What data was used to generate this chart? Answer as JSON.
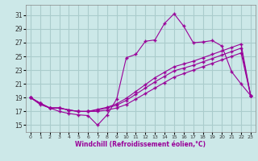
{
  "background_color": "#cce8e8",
  "grid_color": "#aacccc",
  "line_color": "#990099",
  "marker": "+",
  "xlabel": "Windchill (Refroidissement éolien,°C)",
  "ylabel_ticks": [
    15,
    17,
    19,
    21,
    23,
    25,
    27,
    29,
    31
  ],
  "xlabel_ticks": [
    0,
    1,
    2,
    3,
    4,
    5,
    6,
    7,
    8,
    9,
    10,
    11,
    12,
    13,
    14,
    15,
    16,
    17,
    18,
    19,
    20,
    21,
    22,
    23
  ],
  "xlim": [
    -0.5,
    23.5
  ],
  "ylim": [
    14.0,
    32.5
  ],
  "series": [
    [
      19.0,
      18.0,
      17.5,
      17.0,
      16.7,
      16.5,
      16.4,
      15.0,
      16.5,
      18.8,
      24.8,
      25.3,
      27.2,
      27.4,
      29.8,
      31.2,
      29.4,
      27.0,
      27.1,
      27.3,
      26.5,
      22.8,
      21.0,
      19.3
    ],
    [
      19.0,
      18.2,
      17.5,
      17.5,
      17.2,
      17.0,
      17.0,
      17.0,
      17.2,
      17.5,
      18.0,
      18.8,
      19.6,
      20.4,
      21.2,
      22.0,
      22.5,
      23.0,
      23.5,
      24.0,
      24.5,
      25.0,
      25.5,
      19.3
    ],
    [
      19.0,
      18.2,
      17.5,
      17.5,
      17.2,
      17.0,
      17.0,
      17.2,
      17.5,
      17.9,
      18.6,
      19.5,
      20.4,
      21.3,
      22.1,
      22.9,
      23.3,
      23.7,
      24.2,
      24.7,
      25.2,
      25.7,
      26.2,
      19.3
    ],
    [
      19.0,
      18.2,
      17.5,
      17.5,
      17.2,
      17.0,
      17.0,
      17.3,
      17.6,
      18.1,
      18.9,
      19.9,
      20.9,
      21.9,
      22.7,
      23.5,
      23.9,
      24.3,
      24.8,
      25.3,
      25.8,
      26.3,
      26.8,
      19.3
    ]
  ]
}
